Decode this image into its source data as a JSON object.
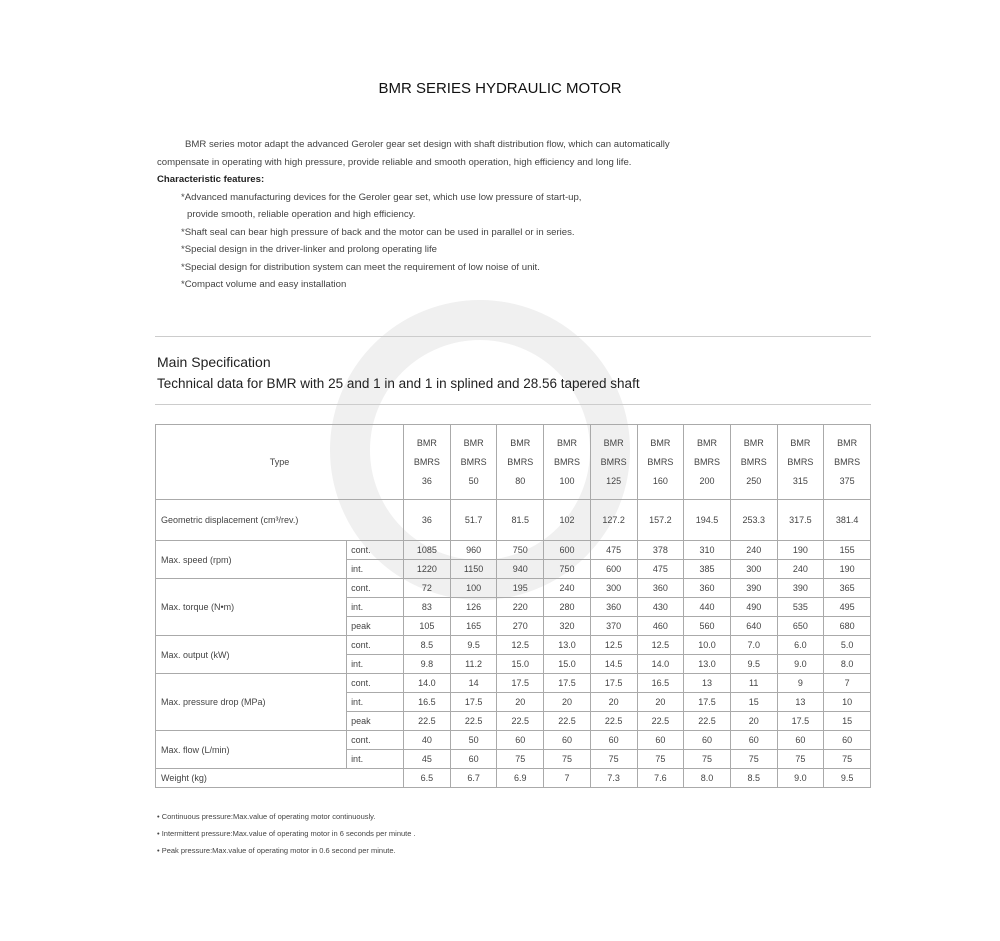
{
  "title": "BMR SERIES HYDRAULIC MOTOR",
  "intro": "BMR series motor adapt the advanced Geroler gear set design with shaft distribution flow, which can automatically compensate in operating with high pressure, provide reliable and smooth operation, high efficiency and long life.",
  "features_heading": "Characteristic features:",
  "features": [
    "*Advanced manufacturing devices for the Geroler gear set, which use low pressure of start-up,",
    "provide smooth, reliable operation and high efficiency.",
    "*Shaft seal can bear high pressure of back and the motor can be used in parallel or in series.",
    "*Special design in the driver-linker and prolong operating life",
    "*Special design for distribution system can meet the requirement of low noise of unit.",
    "*Compact volume and easy installation"
  ],
  "spec_heading": "Main Specification",
  "spec_subheading": "Technical data for BMR with 25 and 1 in and 1 in splined and 28.56 tapered shaft",
  "table": {
    "type_label": "Type",
    "types": [
      [
        "BMR",
        "BMRS",
        "36"
      ],
      [
        "BMR",
        "BMRS",
        "50"
      ],
      [
        "BMR",
        "BMRS",
        "80"
      ],
      [
        "BMR",
        "BMRS",
        "100"
      ],
      [
        "BMR",
        "BMRS",
        "125"
      ],
      [
        "BMR",
        "BMRS",
        "160"
      ],
      [
        "BMR",
        "BMRS",
        "200"
      ],
      [
        "BMR",
        "BMRS",
        "250"
      ],
      [
        "BMR",
        "BMRS",
        "315"
      ],
      [
        "BMR",
        "BMRS",
        "375"
      ]
    ],
    "displacement_label": "Geometric displacement (cm³/rev.)",
    "displacement": [
      "36",
      "51.7",
      "81.5",
      "102",
      "127.2",
      "157.2",
      "194.5",
      "253.3",
      "317.5",
      "381.4"
    ],
    "groups": [
      {
        "label": "Max. speed    (rpm)",
        "rows": [
          {
            "sub": "cont.",
            "values": [
              "1085",
              "960",
              "750",
              "600",
              "475",
              "378",
              "310",
              "240",
              "190",
              "155"
            ]
          },
          {
            "sub": "int.",
            "values": [
              "1220",
              "1150",
              "940",
              "750",
              "600",
              "475",
              "385",
              "300",
              "240",
              "190"
            ]
          }
        ]
      },
      {
        "label": "Max. torque    (N•m)",
        "rows": [
          {
            "sub": "cont.",
            "values": [
              "72",
              "100",
              "195",
              "240",
              "300",
              "360",
              "360",
              "390",
              "390",
              "365"
            ]
          },
          {
            "sub": "int.",
            "values": [
              "83",
              "126",
              "220",
              "280",
              "360",
              "430",
              "440",
              "490",
              "535",
              "495"
            ]
          },
          {
            "sub": "peak",
            "values": [
              "105",
              "165",
              "270",
              "320",
              "370",
              "460",
              "560",
              "640",
              "650",
              "680"
            ]
          }
        ]
      },
      {
        "label": "Max. output    (kW)",
        "rows": [
          {
            "sub": "cont.",
            "values": [
              "8.5",
              "9.5",
              "12.5",
              "13.0",
              "12.5",
              "12.5",
              "10.0",
              "7.0",
              "6.0",
              "5.0"
            ]
          },
          {
            "sub": "int.",
            "values": [
              "9.8",
              "11.2",
              "15.0",
              "15.0",
              "14.5",
              "14.0",
              "13.0",
              "9.5",
              "9.0",
              "8.0"
            ]
          }
        ]
      },
      {
        "label": "Max. pressure drop    (MPa)",
        "rows": [
          {
            "sub": "cont.",
            "values": [
              "14.0",
              "14",
              "17.5",
              "17.5",
              "17.5",
              "16.5",
              "13",
              "11",
              "9",
              "7"
            ]
          },
          {
            "sub": "int.",
            "values": [
              "16.5",
              "17.5",
              "20",
              "20",
              "20",
              "20",
              "17.5",
              "15",
              "13",
              "10"
            ]
          },
          {
            "sub": "peak",
            "values": [
              "22.5",
              "22.5",
              "22.5",
              "22.5",
              "22.5",
              "22.5",
              "22.5",
              "20",
              "17.5",
              "15"
            ]
          }
        ]
      },
      {
        "label": "Max. flow    (L/min)",
        "rows": [
          {
            "sub": "cont.",
            "values": [
              "40",
              "50",
              "60",
              "60",
              "60",
              "60",
              "60",
              "60",
              "60",
              "60"
            ]
          },
          {
            "sub": "int.",
            "values": [
              "45",
              "60",
              "75",
              "75",
              "75",
              "75",
              "75",
              "75",
              "75",
              "75"
            ]
          }
        ]
      }
    ],
    "weight_label": "Weight  (kg)",
    "weight": [
      "6.5",
      "6.7",
      "6.9",
      "7",
      "7.3",
      "7.6",
      "8.0",
      "8.5",
      "9.0",
      "9.5"
    ]
  },
  "notes": [
    "• Continuous pressure:Max.value of operating motor continuously.",
    "• Intermittent pressure:Max.value of operating motor in 6 seconds per minute .",
    "• Peak pressure:Max.value of operating motor in 0.6 second per minute."
  ]
}
